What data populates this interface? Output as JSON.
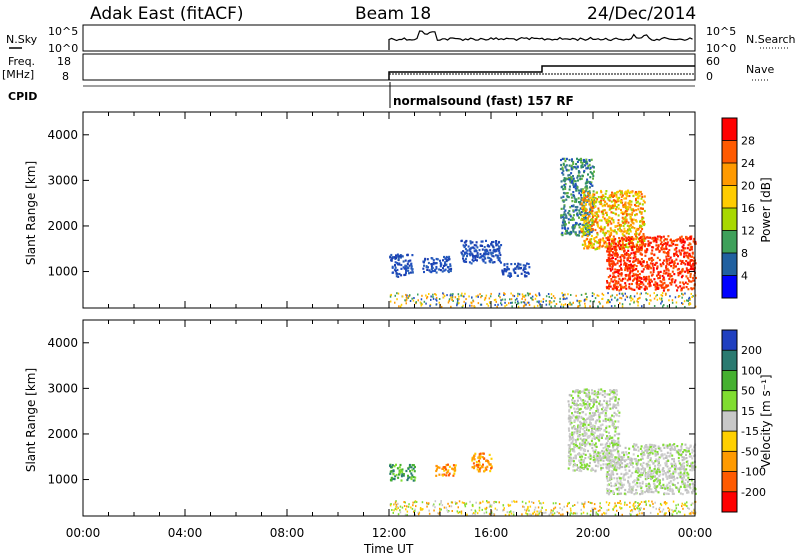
{
  "header": {
    "station": "Adak East (fitACF)",
    "beam": "Beam 18",
    "date": "24/Dec/2014"
  },
  "summary": {
    "nsky_label": "N.Sky",
    "nsearch_label": "N.Search",
    "freq_label_line1": "Freq.",
    "freq_label_line2": "[MHz]",
    "nave_label": "Nave",
    "cpid_label": "CPID",
    "left_ticks_top": [
      "10^5",
      "10^0"
    ],
    "right_ticks_top": [
      "10^5",
      "10^0"
    ],
    "left_ticks_freq": [
      "18",
      "8"
    ],
    "right_ticks_nave": [
      "60",
      "0"
    ],
    "cpid_text": "normalsound (fast) 157 RF"
  },
  "colorbars": {
    "power": {
      "title": "Power [dB]",
      "ticks": [
        "28",
        "24",
        "20",
        "16",
        "12",
        "8",
        "4"
      ],
      "colors": [
        "#ff0000",
        "#ff5a00",
        "#ff9a00",
        "#ffcc00",
        "#a8d800",
        "#3ea05a",
        "#2060a0",
        "#0000ff"
      ]
    },
    "velocity": {
      "title": "Velocity [m s⁻¹]",
      "ticks": [
        "200",
        "100",
        "50",
        "15",
        "-15",
        "-50",
        "-100",
        "-200"
      ],
      "colors": [
        "#2040c0",
        "#2a7a70",
        "#45b030",
        "#80dd30",
        "#c8c8c8",
        "#ffd000",
        "#ff9a00",
        "#ff5a00",
        "#ff0000"
      ]
    }
  },
  "chart_data": [
    {
      "type": "heatmap",
      "title": "Power",
      "ylabel": "Slant Range [km]",
      "yticks": [
        "1000",
        "2000",
        "3000",
        "4000"
      ],
      "ylim": [
        200,
        4500
      ],
      "xlim": [
        0,
        24
      ],
      "scatter_patches": [
        {
          "x": [
            12.0,
            12.9
          ],
          "y": [
            900,
            1400
          ],
          "level": "blue"
        },
        {
          "x": [
            13.3,
            14.4
          ],
          "y": [
            1000,
            1350
          ],
          "level": "blue"
        },
        {
          "x": [
            14.8,
            16.4
          ],
          "y": [
            1200,
            1700
          ],
          "level": "blue"
        },
        {
          "x": [
            16.4,
            17.5
          ],
          "y": [
            900,
            1200
          ],
          "level": "blue"
        },
        {
          "x": [
            18.7,
            20.0
          ],
          "y": [
            1800,
            3500
          ],
          "level": "blue-green"
        },
        {
          "x": [
            19.5,
            22.0
          ],
          "y": [
            1500,
            2800
          ],
          "level": "orange"
        },
        {
          "x": [
            20.5,
            24.0
          ],
          "y": [
            600,
            1800
          ],
          "level": "red"
        }
      ]
    },
    {
      "type": "heatmap",
      "title": "Velocity",
      "ylabel": "Slant Range [km]",
      "yticks": [
        "1000",
        "2000",
        "3000",
        "4000"
      ],
      "ylim": [
        200,
        4500
      ],
      "xlim": [
        0,
        24
      ],
      "scatter_patches": [
        {
          "x": [
            12.0,
            13.0
          ],
          "y": [
            1000,
            1350
          ],
          "level": "green"
        },
        {
          "x": [
            13.8,
            14.6
          ],
          "y": [
            1100,
            1350
          ],
          "level": "orange"
        },
        {
          "x": [
            15.2,
            16.0
          ],
          "y": [
            1200,
            1600
          ],
          "level": "orange"
        },
        {
          "x": [
            19.0,
            21.0
          ],
          "y": [
            1200,
            3000
          ],
          "level": "grey"
        },
        {
          "x": [
            20.5,
            24.0
          ],
          "y": [
            700,
            1800
          ],
          "level": "grey"
        }
      ]
    }
  ],
  "time_axis": {
    "ticks": [
      "00:00",
      "04:00",
      "08:00",
      "12:00",
      "16:00",
      "20:00",
      "00:00"
    ],
    "label": "Time UT"
  }
}
